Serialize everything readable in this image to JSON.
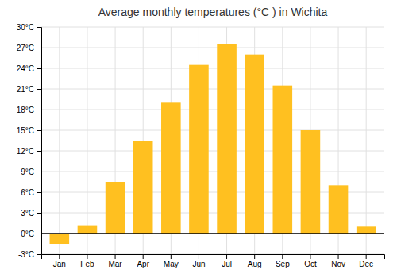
{
  "chart_data": {
    "type": "bar",
    "title": "Average monthly temperatures (°C ) in Wichita",
    "categories": [
      "Jan",
      "Feb",
      "Mar",
      "Apr",
      "May",
      "Jun",
      "Jul",
      "Aug",
      "Sep",
      "Oct",
      "Nov",
      "Dec"
    ],
    "values": [
      -1.5,
      1.2,
      7.5,
      13.5,
      19.0,
      24.5,
      27.5,
      26.0,
      21.5,
      15.0,
      7.0,
      1.0
    ],
    "color": "#FFC020",
    "ylim": [
      -3,
      30
    ],
    "yticks": [
      {
        "value": -3,
        "label": "-3°C"
      },
      {
        "value": 0,
        "label": "0°C"
      },
      {
        "value": 3,
        "label": "3°C"
      },
      {
        "value": 6,
        "label": "6°C"
      },
      {
        "value": 9,
        "label": "9°C"
      },
      {
        "value": 12,
        "label": "12°C"
      },
      {
        "value": 15,
        "label": "15°C"
      },
      {
        "value": 18,
        "label": "18°C"
      },
      {
        "value": 21,
        "label": "21°C"
      },
      {
        "value": 24,
        "label": "24°C"
      },
      {
        "value": 27,
        "label": "27°C"
      },
      {
        "value": 30,
        "label": "30°C"
      }
    ],
    "grid": true
  }
}
